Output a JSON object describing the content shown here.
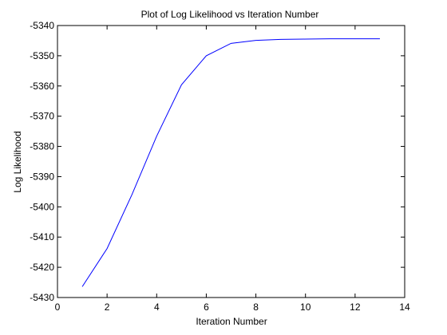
{
  "chart_data": {
    "type": "line",
    "title": "Plot of Log Likelihood vs Iteration Number",
    "xlabel": "Iteration Number",
    "ylabel": "Log Likelihood",
    "xlim": [
      0,
      14
    ],
    "ylim": [
      -5430,
      -5340
    ],
    "xticks": [
      0,
      2,
      4,
      6,
      8,
      10,
      12,
      14
    ],
    "yticks": [
      -5430,
      -5420,
      -5410,
      -5400,
      -5390,
      -5380,
      -5370,
      -5360,
      -5350,
      -5340
    ],
    "grid": false,
    "series": [
      {
        "color": "#0000ff",
        "x": [
          1,
          2,
          3,
          4,
          5,
          6,
          7,
          8,
          9,
          10,
          11,
          12,
          13
        ],
        "y": [
          -5426.4,
          -5413.8,
          -5396.0,
          -5376.6,
          -5359.6,
          -5350.0,
          -5345.9,
          -5344.9,
          -5344.6,
          -5344.5,
          -5344.4,
          -5344.4,
          -5344.4
        ]
      }
    ]
  }
}
